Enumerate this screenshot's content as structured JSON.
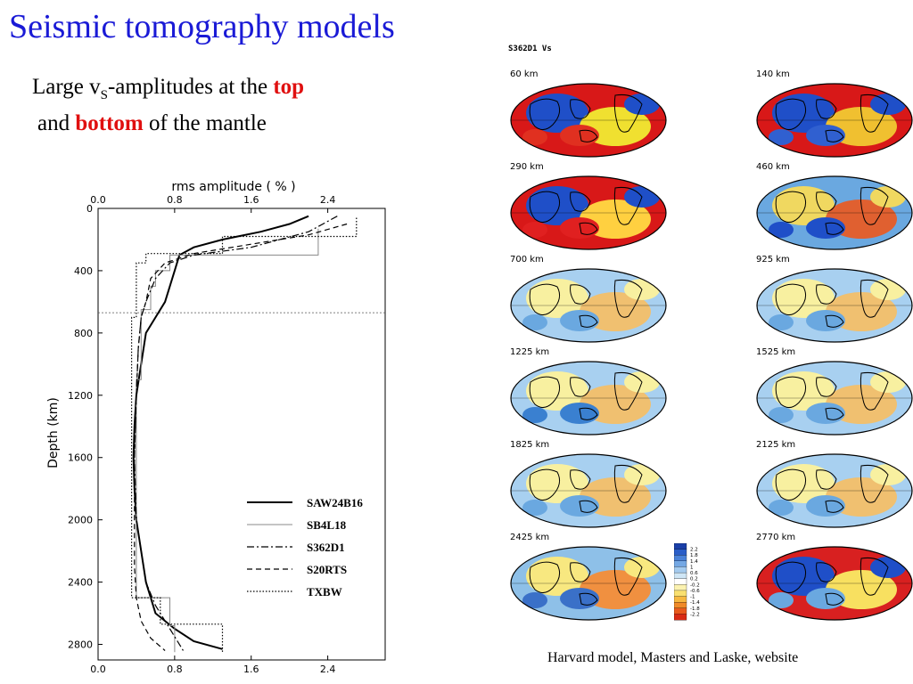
{
  "slide": {
    "title": "Seismic tomography models",
    "subtitle_large": "Large v",
    "subtitle_sub": "S",
    "subtitle_mid": "-amplitudes at the ",
    "subtitle_top": "top",
    "subtitle_and": "and ",
    "subtitle_bottom": "bottom",
    "subtitle_end": " of the mantle",
    "caption": "Harvard model, Masters and Laske, website"
  },
  "chart_data": {
    "type": "line",
    "title": "",
    "xlabel": "rms amplitude ( % )",
    "ylabel": "Depth (km)",
    "xlim": [
      0,
      3
    ],
    "ylim": [
      2900,
      0
    ],
    "xticks": [
      "0.0",
      "0.8",
      "1.6",
      "2.4"
    ],
    "yticks": [
      "0",
      "400",
      "800",
      "1200",
      "1600",
      "2000",
      "2400",
      "2800"
    ],
    "reference_line_depth": 670,
    "legend_position": "lower-right",
    "series": [
      {
        "name": "SAW24B16",
        "style": "solid-thick",
        "points": [
          [
            2.2,
            50
          ],
          [
            2.0,
            100
          ],
          [
            1.7,
            150
          ],
          [
            1.3,
            200
          ],
          [
            1.0,
            250
          ],
          [
            0.85,
            300
          ],
          [
            0.8,
            400
          ],
          [
            0.75,
            500
          ],
          [
            0.7,
            600
          ],
          [
            0.6,
            700
          ],
          [
            0.5,
            800
          ],
          [
            0.45,
            1000
          ],
          [
            0.4,
            1200
          ],
          [
            0.38,
            1400
          ],
          [
            0.37,
            1600
          ],
          [
            0.38,
            1800
          ],
          [
            0.4,
            2000
          ],
          [
            0.45,
            2200
          ],
          [
            0.5,
            2400
          ],
          [
            0.6,
            2600
          ],
          [
            0.8,
            2700
          ],
          [
            1.0,
            2780
          ],
          [
            1.3,
            2830
          ]
        ]
      },
      {
        "name": "SB4L18",
        "style": "solid-thin",
        "points": [
          [
            2.3,
            130
          ],
          [
            2.3,
            300
          ],
          [
            0.75,
            300
          ],
          [
            0.75,
            400
          ],
          [
            0.6,
            400
          ],
          [
            0.6,
            500
          ],
          [
            0.55,
            500
          ],
          [
            0.55,
            650
          ],
          [
            0.45,
            650
          ],
          [
            0.45,
            1100
          ],
          [
            0.4,
            1100
          ],
          [
            0.4,
            2500
          ],
          [
            0.75,
            2500
          ],
          [
            0.75,
            2680
          ],
          [
            0.8,
            2680
          ],
          [
            0.8,
            2850
          ]
        ]
      },
      {
        "name": "S362D1",
        "style": "dash-dot",
        "points": [
          [
            2.5,
            50
          ],
          [
            2.2,
            150
          ],
          [
            1.6,
            250
          ],
          [
            1.0,
            300
          ],
          [
            0.75,
            350
          ],
          [
            0.6,
            450
          ],
          [
            0.5,
            600
          ],
          [
            0.45,
            700
          ],
          [
            0.42,
            900
          ],
          [
            0.4,
            1200
          ],
          [
            0.38,
            1600
          ],
          [
            0.4,
            2000
          ],
          [
            0.45,
            2200
          ],
          [
            0.5,
            2400
          ],
          [
            0.6,
            2550
          ],
          [
            0.75,
            2700
          ],
          [
            0.9,
            2850
          ]
        ]
      },
      {
        "name": "S20RTS",
        "style": "dashed",
        "points": [
          [
            2.6,
            100
          ],
          [
            2.2,
            170
          ],
          [
            1.6,
            230
          ],
          [
            1.0,
            290
          ],
          [
            0.7,
            350
          ],
          [
            0.55,
            450
          ],
          [
            0.5,
            600
          ],
          [
            0.45,
            700
          ],
          [
            0.42,
            900
          ],
          [
            0.4,
            1200
          ],
          [
            0.38,
            1600
          ],
          [
            0.38,
            2000
          ],
          [
            0.38,
            2300
          ],
          [
            0.4,
            2500
          ],
          [
            0.45,
            2650
          ],
          [
            0.55,
            2760
          ],
          [
            0.7,
            2840
          ]
        ]
      },
      {
        "name": "TXBW",
        "style": "dotted",
        "points": [
          [
            2.7,
            60
          ],
          [
            2.7,
            180
          ],
          [
            1.3,
            180
          ],
          [
            1.3,
            290
          ],
          [
            0.5,
            290
          ],
          [
            0.5,
            350
          ],
          [
            0.4,
            350
          ],
          [
            0.4,
            700
          ],
          [
            0.35,
            700
          ],
          [
            0.35,
            2500
          ],
          [
            0.65,
            2500
          ],
          [
            0.65,
            2670
          ],
          [
            1.3,
            2670
          ],
          [
            1.3,
            2850
          ]
        ]
      }
    ]
  },
  "maps": {
    "model_label": "S362D1 Vs",
    "panels": [
      {
        "depth": "60 km",
        "palette": [
          "#d81818",
          "#1f4fc8",
          "#f0e030",
          "#e03020"
        ]
      },
      {
        "depth": "140 km",
        "palette": [
          "#d81818",
          "#1f4fc8",
          "#f0c030",
          "#3060d0"
        ]
      },
      {
        "depth": "290 km",
        "palette": [
          "#d81818",
          "#1f4fc8",
          "#ffd040",
          "#e02020"
        ]
      },
      {
        "depth": "460 km",
        "palette": [
          "#6aa8e0",
          "#f0d860",
          "#e06030",
          "#1f4fc8"
        ]
      },
      {
        "depth": "700 km",
        "palette": [
          "#a8d0f0",
          "#f8f0a0",
          "#f0c070",
          "#6aa8e0"
        ]
      },
      {
        "depth": "925 km",
        "palette": [
          "#a8d0f0",
          "#f8f0a0",
          "#f0c070",
          "#6aa8e0"
        ]
      },
      {
        "depth": "1225 km",
        "palette": [
          "#a8d0f0",
          "#f8f0a0",
          "#f0c070",
          "#3a80d0"
        ]
      },
      {
        "depth": "1525 km",
        "palette": [
          "#a8d0f0",
          "#f8f0a0",
          "#f0c070",
          "#6aa8e0"
        ]
      },
      {
        "depth": "1825 km",
        "palette": [
          "#a8d0f0",
          "#f8f0a0",
          "#f0c070",
          "#6aa8e0"
        ]
      },
      {
        "depth": "2125 km",
        "palette": [
          "#a8d0f0",
          "#f8f0a0",
          "#f0c070",
          "#6aa8e0"
        ]
      },
      {
        "depth": "2425 km",
        "palette": [
          "#8ec0e8",
          "#f8e880",
          "#f09040",
          "#3a70c8"
        ]
      },
      {
        "depth": "2770 km",
        "palette": [
          "#d82020",
          "#1f4fc8",
          "#f8e060",
          "#6aa8e0"
        ]
      }
    ],
    "scale_colors": [
      "#1a3fa8",
      "#2a5ec8",
      "#4a82d8",
      "#74a8e4",
      "#a4cbef",
      "#cfe6f6",
      "#ffffff",
      "#fbf2b0",
      "#f9e070",
      "#f6b840",
      "#f08a28",
      "#e85a1c",
      "#d82a14"
    ],
    "scale_labels": [
      "2.2",
      "1.8",
      "1.4",
      "1",
      "0.6",
      "0.2",
      "-0.2",
      "-0.6",
      "-1",
      "-1.4",
      "-1.8",
      "-2.2"
    ]
  }
}
